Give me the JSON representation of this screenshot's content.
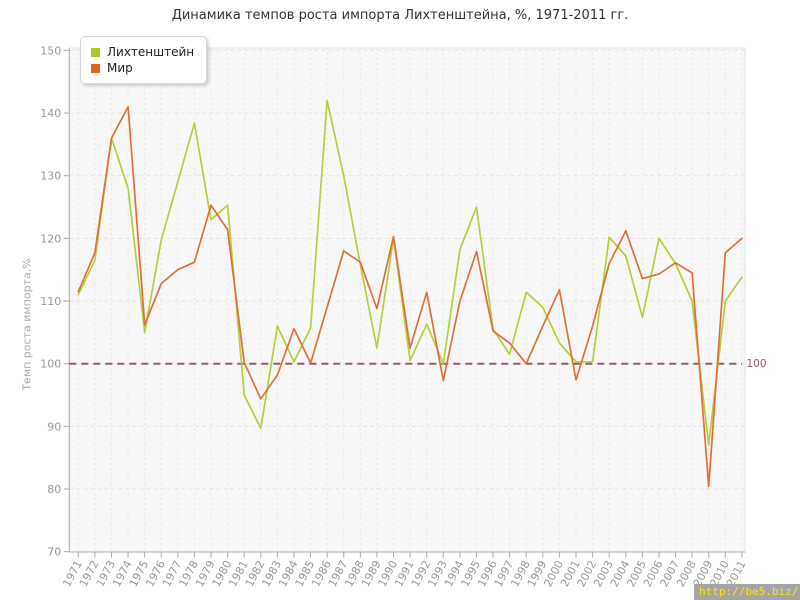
{
  "title": "Динамика темпов роста импорта Лихтенштейна, %, 1971-2011 гг.",
  "y_axis_label": "Темп роста импорта,%",
  "watermark": "http://be5.biz/",
  "reference_line": {
    "value": 100,
    "label": "100",
    "color": "#a05868"
  },
  "colors": {
    "liechtenstein_line": "#b3cf3b",
    "liechtenstein_swatch": "#aacc22",
    "world_line": "#e0703a",
    "world_swatch": "#dd6622",
    "plot_background": "#f7f7f7",
    "grid": "#e2e2e2",
    "axis": "#aaaaaa",
    "tick_text": "#999999",
    "watermark_bg": "#a4a4a4",
    "watermark_text": "#ffe400"
  },
  "chart_data": {
    "type": "line",
    "title": "Динамика темпов роста импорта Лихтенштейна, %, 1971-2011 гг.",
    "xlabel": "",
    "ylabel": "Темп роста импорта,%",
    "ylim": [
      70,
      150
    ],
    "y_ticks": [
      70,
      80,
      90,
      100,
      110,
      120,
      130,
      140,
      150
    ],
    "grid": true,
    "legend_position": "top-left",
    "reference_value": 100,
    "x": [
      1971,
      1972,
      1973,
      1974,
      1975,
      1976,
      1977,
      1978,
      1979,
      1980,
      1981,
      1982,
      1983,
      1984,
      1985,
      1986,
      1987,
      1988,
      1989,
      1990,
      1991,
      1992,
      1993,
      1994,
      1995,
      1996,
      1997,
      1998,
      1999,
      2000,
      2001,
      2002,
      2003,
      2004,
      2005,
      2006,
      2007,
      2008,
      2009,
      2010,
      2011
    ],
    "series": [
      {
        "name": "Лихтенштейн",
        "color": "#b3cf3b",
        "values": [
          111,
          116.5,
          136,
          128,
          105,
          119.8,
          129,
          138.4,
          123,
          125.3,
          95,
          89.7,
          106,
          100.3,
          105.7,
          142,
          130,
          115.8,
          102.5,
          120,
          100.5,
          106.3,
          100,
          118.2,
          125,
          105.5,
          101.5,
          111.4,
          109,
          103.3,
          100.3,
          100.3,
          120.2,
          117.2,
          107.4,
          120,
          116,
          110,
          87,
          110,
          113.8
        ]
      },
      {
        "name": "Мир",
        "color": "#e0703a",
        "values": [
          111.5,
          117.7,
          136,
          141,
          106.2,
          112.8,
          115,
          116.2,
          125.3,
          121.4,
          100.2,
          94.4,
          98.2,
          105.6,
          100.1,
          109,
          118,
          116.2,
          108.8,
          120.3,
          102.5,
          111.4,
          97.3,
          110,
          117.9,
          105.2,
          103.3,
          100,
          106,
          111.8,
          97.4,
          106,
          116,
          121.2,
          113.6,
          114.3,
          116.1,
          114.5,
          80.4,
          117.7,
          120
        ]
      }
    ]
  }
}
